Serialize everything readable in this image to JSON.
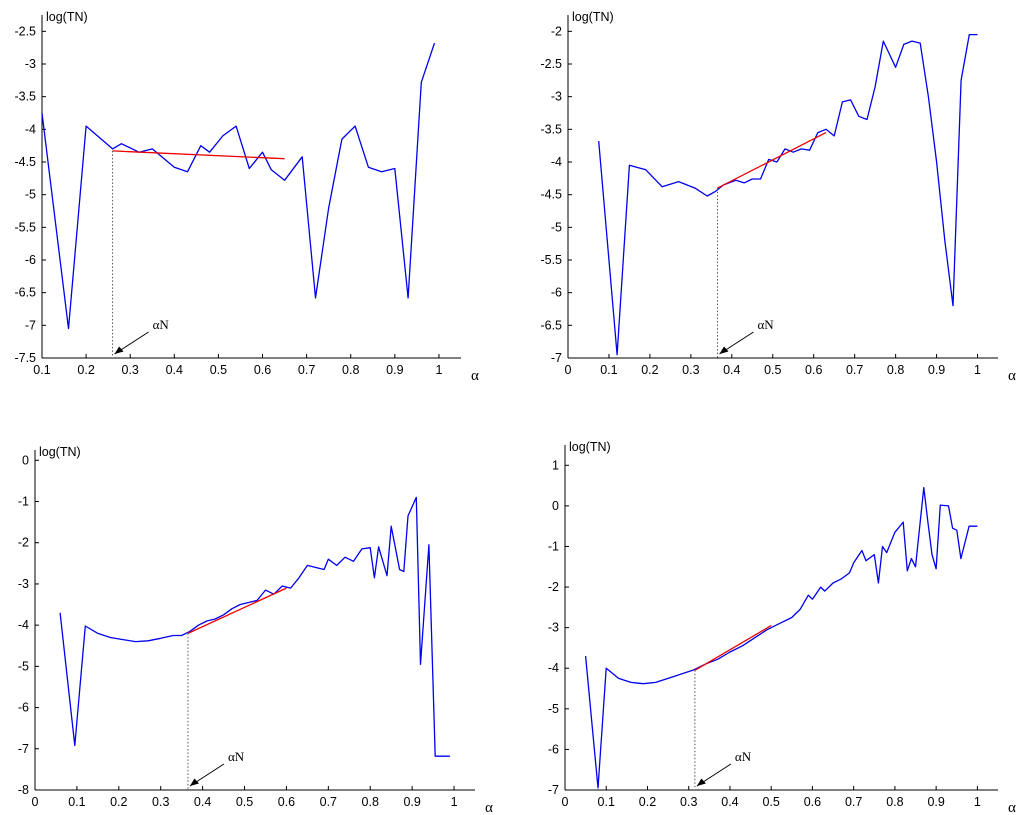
{
  "chart_data": [
    {
      "type": "line",
      "ylabel": "log(TN)",
      "xlabel": "α",
      "xlim": [
        0.1,
        1.05
      ],
      "ylim": [
        -7.5,
        -2.25
      ],
      "xticks": [
        0.1,
        0.2,
        0.3,
        0.4,
        0.5,
        0.6,
        0.7,
        0.8,
        0.9,
        1
      ],
      "xtick_labels": [
        "0.1",
        "0.2",
        "0.3",
        "0.4",
        "0.5",
        "0.6",
        "0.7",
        "0.8",
        "0.9",
        "1"
      ],
      "yticks": [
        -7.5,
        -7,
        -6.5,
        -6,
        -5.5,
        -5,
        -4.5,
        -4,
        -3.5,
        -3,
        -2.5
      ],
      "ytick_labels": [
        "-7.5",
        "-7",
        "-6.5",
        "-6",
        "-5.5",
        "-5",
        "-4.5",
        "-4",
        "-3.5",
        "-3",
        "-2.5"
      ],
      "annotation": {
        "label": "αN",
        "x": 0.26
      },
      "series": [
        {
          "color": "#0000ee",
          "x": [
            0.1,
            0.16,
            0.2,
            0.26,
            0.28,
            0.32,
            0.35,
            0.4,
            0.43,
            0.46,
            0.48,
            0.51,
            0.54,
            0.57,
            0.6,
            0.62,
            0.65,
            0.69,
            0.72,
            0.75,
            0.78,
            0.81,
            0.84,
            0.87,
            0.9,
            0.93,
            0.96,
            0.99
          ],
          "y": [
            -3.75,
            -7.05,
            -3.95,
            -4.3,
            -4.22,
            -4.35,
            -4.3,
            -4.58,
            -4.65,
            -4.25,
            -4.35,
            -4.1,
            -3.95,
            -4.6,
            -4.35,
            -4.62,
            -4.78,
            -4.42,
            -6.58,
            -5.2,
            -4.15,
            -3.95,
            -4.58,
            -4.65,
            -4.6,
            -6.58,
            -3.28,
            -2.68
          ]
        },
        {
          "color": "#ee0000",
          "x": [
            0.26,
            0.65
          ],
          "y": [
            -4.33,
            -4.45
          ]
        }
      ]
    },
    {
      "type": "line",
      "ylabel": "log(TN)",
      "xlabel": "α",
      "xlim": [
        0,
        1.05
      ],
      "ylim": [
        -7,
        -1.75
      ],
      "xticks": [
        0,
        0.1,
        0.2,
        0.3,
        0.4,
        0.5,
        0.6,
        0.7,
        0.8,
        0.9,
        1
      ],
      "xtick_labels": [
        "0",
        "0.1",
        "0.2",
        "0.3",
        "0.4",
        "0.5",
        "0.6",
        "0.7",
        "0.8",
        "0.9",
        "1"
      ],
      "yticks": [
        -7,
        -6.5,
        -6,
        -5.5,
        -5,
        -4.5,
        -4,
        -3.5,
        -3,
        -2.5,
        -2
      ],
      "ytick_labels": [
        "-7",
        "-6.5",
        "-6",
        "-5.5",
        "-5",
        "-4.5",
        "-4",
        "-3.5",
        "-3",
        "-2.5",
        "-2"
      ],
      "annotation": {
        "label": "αN",
        "x": 0.365
      },
      "series": [
        {
          "color": "#0000ee",
          "x": [
            0.075,
            0.12,
            0.15,
            0.19,
            0.23,
            0.27,
            0.31,
            0.34,
            0.36,
            0.38,
            0.41,
            0.43,
            0.45,
            0.47,
            0.49,
            0.51,
            0.53,
            0.55,
            0.57,
            0.59,
            0.61,
            0.63,
            0.65,
            0.67,
            0.69,
            0.71,
            0.73,
            0.75,
            0.77,
            0.8,
            0.82,
            0.84,
            0.86,
            0.88,
            0.9,
            0.92,
            0.94,
            0.96,
            0.98,
            1.0
          ],
          "y": [
            -3.68,
            -6.95,
            -4.05,
            -4.12,
            -4.38,
            -4.3,
            -4.4,
            -4.52,
            -4.45,
            -4.35,
            -4.28,
            -4.32,
            -4.26,
            -4.26,
            -3.96,
            -4.0,
            -3.8,
            -3.85,
            -3.8,
            -3.82,
            -3.55,
            -3.5,
            -3.6,
            -3.08,
            -3.05,
            -3.3,
            -3.35,
            -2.85,
            -2.15,
            -2.55,
            -2.2,
            -2.15,
            -2.18,
            -3.0,
            -4.0,
            -5.2,
            -6.2,
            -2.75,
            -2.05,
            -2.05
          ]
        },
        {
          "color": "#ee0000",
          "x": [
            0.365,
            0.63
          ],
          "y": [
            -4.4,
            -3.55
          ]
        }
      ]
    },
    {
      "type": "line",
      "ylabel": "log(TN)",
      "xlabel": "α",
      "xlim": [
        0,
        1.05
      ],
      "ylim": [
        -8,
        0.25
      ],
      "xticks": [
        0,
        0.1,
        0.2,
        0.3,
        0.4,
        0.5,
        0.6,
        0.7,
        0.8,
        0.9,
        1
      ],
      "xtick_labels": [
        "0",
        "0.1",
        "0.2",
        "0.3",
        "0.4",
        "0.5",
        "0.6",
        "0.7",
        "0.8",
        "0.9",
        "1"
      ],
      "yticks": [
        -8,
        -7,
        -6,
        -5,
        -4,
        -3,
        -2,
        -1,
        0
      ],
      "ytick_labels": [
        "-8",
        "-7",
        "-6",
        "-5",
        "-4",
        "-3",
        "-2",
        "-1",
        "0"
      ],
      "annotation": {
        "label": "αN",
        "x": 0.365
      },
      "series": [
        {
          "color": "#0000ee",
          "x": [
            0.06,
            0.095,
            0.12,
            0.15,
            0.18,
            0.21,
            0.24,
            0.27,
            0.3,
            0.33,
            0.35,
            0.37,
            0.39,
            0.41,
            0.43,
            0.45,
            0.47,
            0.49,
            0.51,
            0.53,
            0.55,
            0.57,
            0.59,
            0.61,
            0.63,
            0.65,
            0.67,
            0.69,
            0.7,
            0.72,
            0.74,
            0.76,
            0.78,
            0.8,
            0.81,
            0.82,
            0.84,
            0.85,
            0.87,
            0.88,
            0.89,
            0.91,
            0.92,
            0.94,
            0.955,
            0.975,
            0.99
          ],
          "y": [
            -3.7,
            -6.92,
            -4.02,
            -4.2,
            -4.3,
            -4.35,
            -4.4,
            -4.38,
            -4.32,
            -4.25,
            -4.25,
            -4.15,
            -4.0,
            -3.9,
            -3.85,
            -3.75,
            -3.6,
            -3.5,
            -3.45,
            -3.4,
            -3.15,
            -3.25,
            -3.05,
            -3.1,
            -2.85,
            -2.55,
            -2.6,
            -2.65,
            -2.4,
            -2.55,
            -2.35,
            -2.45,
            -2.15,
            -2.12,
            -2.85,
            -2.1,
            -2.8,
            -1.6,
            -2.65,
            -2.7,
            -1.35,
            -0.9,
            -4.95,
            -2.05,
            -7.18,
            -7.18,
            -7.18
          ]
        },
        {
          "color": "#ee0000",
          "x": [
            0.365,
            0.6
          ],
          "y": [
            -4.2,
            -3.1
          ]
        }
      ]
    },
    {
      "type": "line",
      "ylabel": "log(TN)",
      "xlabel": "α",
      "xlim": [
        0,
        1.05
      ],
      "ylim": [
        -7,
        1.5
      ],
      "xticks": [
        0,
        0.1,
        0.2,
        0.3,
        0.4,
        0.5,
        0.6,
        0.7,
        0.8,
        0.9,
        1
      ],
      "xtick_labels": [
        "0",
        "0.1",
        "0.2",
        "0.3",
        "0.4",
        "0.5",
        "0.6",
        "0.7",
        "0.8",
        "0.9",
        "1"
      ],
      "yticks": [
        -7,
        -6,
        -5,
        -4,
        -3,
        -2,
        -1,
        0,
        1
      ],
      "ytick_labels": [
        "-7",
        "-6",
        "-5",
        "-4",
        "-3",
        "-2",
        "-1",
        "0",
        "1"
      ],
      "annotation": {
        "label": "αN",
        "x": 0.315
      },
      "series": [
        {
          "color": "#0000ee",
          "x": [
            0.05,
            0.08,
            0.1,
            0.13,
            0.16,
            0.19,
            0.22,
            0.25,
            0.28,
            0.31,
            0.34,
            0.37,
            0.4,
            0.43,
            0.46,
            0.49,
            0.52,
            0.55,
            0.57,
            0.59,
            0.6,
            0.62,
            0.63,
            0.65,
            0.67,
            0.69,
            0.7,
            0.72,
            0.73,
            0.75,
            0.76,
            0.77,
            0.78,
            0.8,
            0.82,
            0.83,
            0.84,
            0.85,
            0.87,
            0.88,
            0.89,
            0.9,
            0.91,
            0.93,
            0.94,
            0.95,
            0.96,
            0.98,
            1.0
          ],
          "y": [
            -3.7,
            -6.95,
            -4.0,
            -4.25,
            -4.35,
            -4.38,
            -4.35,
            -4.25,
            -4.15,
            -4.05,
            -3.9,
            -3.78,
            -3.6,
            -3.45,
            -3.25,
            -3.05,
            -2.9,
            -2.75,
            -2.55,
            -2.2,
            -2.3,
            -2.0,
            -2.1,
            -1.9,
            -1.8,
            -1.65,
            -1.4,
            -1.1,
            -1.35,
            -1.2,
            -1.9,
            -1.0,
            -1.15,
            -0.65,
            -0.4,
            -1.6,
            -1.3,
            -1.5,
            0.45,
            -0.4,
            -1.2,
            -1.55,
            0.02,
            0.0,
            -0.55,
            -0.6,
            -1.3,
            -0.5,
            -0.5
          ]
        },
        {
          "color": "#ee0000",
          "x": [
            0.315,
            0.5
          ],
          "y": [
            -4.05,
            -2.95
          ]
        }
      ]
    }
  ]
}
